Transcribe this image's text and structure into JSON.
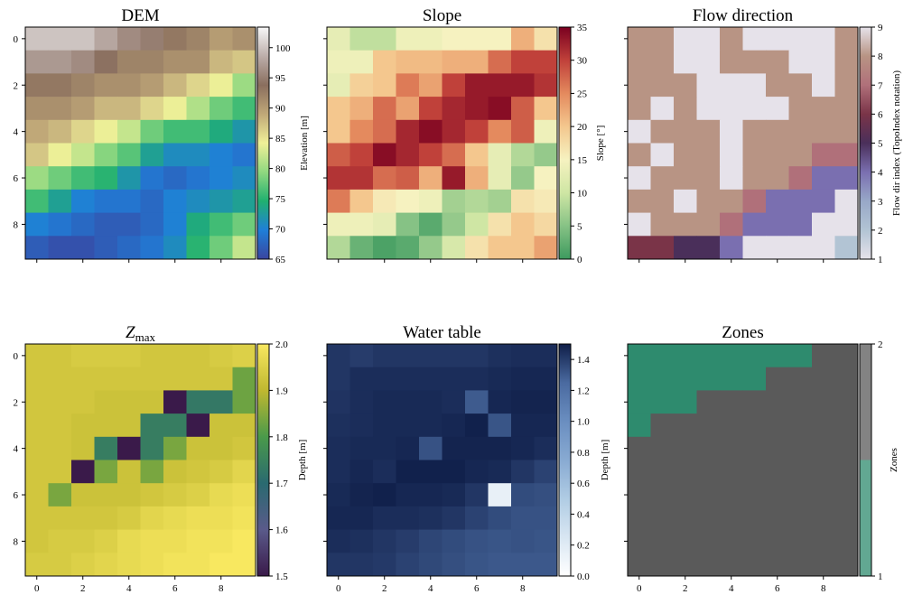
{
  "chart_data": [
    {
      "type": "heatmap",
      "title": "DEM",
      "colorbar_label": "Elevation [m]",
      "xlim": [
        -0.5,
        9.5
      ],
      "ylim": [
        9.5,
        -0.5
      ],
      "xticks": [
        0,
        2,
        4,
        6,
        8
      ],
      "yticks": [
        0,
        2,
        4,
        6,
        8
      ],
      "xticklabels": false,
      "yticklabels": true,
      "clim": [
        65,
        103.4
      ],
      "cticks": [
        65,
        70,
        75,
        80,
        85,
        90,
        95,
        100
      ],
      "discrete": false,
      "colormap": [
        "#3a45a0",
        "#1f7fd8",
        "#20b070",
        "#90d880",
        "#f0f098",
        "#c0a878",
        "#8a6e5e",
        "#bcaeaa",
        "#f8f8f8"
      ],
      "values": [
        [
          100,
          100,
          100,
          98,
          96,
          95,
          93,
          92,
          90,
          91
        ],
        [
          97,
          97,
          96,
          94,
          92,
          92,
          91,
          91,
          88,
          87
        ],
        [
          93,
          93,
          92,
          91,
          91,
          90,
          88,
          86,
          84,
          80
        ],
        [
          91,
          91,
          90,
          88,
          88,
          86,
          84,
          81,
          78,
          76
        ],
        [
          89,
          88,
          86,
          84,
          82,
          78,
          76,
          76,
          74,
          72
        ],
        [
          87,
          84,
          82,
          79,
          77,
          73,
          71,
          71,
          70,
          69
        ],
        [
          80,
          78,
          76,
          75,
          72,
          69,
          68,
          69,
          70,
          71
        ],
        [
          76,
          73,
          70,
          69,
          69,
          68,
          70,
          71,
          72,
          73
        ],
        [
          70,
          69,
          68,
          67,
          67,
          68,
          70,
          74,
          76,
          78
        ],
        [
          67,
          66,
          66,
          67,
          68,
          69,
          71,
          75,
          78,
          82
        ]
      ]
    },
    {
      "type": "heatmap",
      "title": "Slope",
      "colorbar_label": "Slope [°]",
      "xlim": [
        -0.5,
        9.5
      ],
      "ylim": [
        9.5,
        -0.5
      ],
      "xticks": [
        0,
        2,
        4,
        6,
        8
      ],
      "yticks": [
        0,
        2,
        4,
        6,
        8
      ],
      "xticklabels": false,
      "yticklabels": false,
      "clim": [
        0,
        35
      ],
      "cticks": [
        0,
        5,
        10,
        15,
        20,
        25,
        30,
        35
      ],
      "discrete": false,
      "colormap": [
        "#3d9a5e",
        "#86c285",
        "#cfe6a4",
        "#f6f2c0",
        "#f4c78e",
        "#e48a5e",
        "#c0413a",
        "#7a0020"
      ],
      "values": [
        [
          13,
          9,
          9,
          14,
          14,
          15,
          15,
          15,
          22,
          17
        ],
        [
          14,
          14,
          20,
          21,
          21,
          22,
          22,
          27,
          30,
          30
        ],
        [
          13,
          19,
          20,
          26,
          23,
          30,
          33,
          33,
          33,
          31
        ],
        [
          20,
          22,
          27,
          23,
          30,
          32,
          33,
          34,
          28,
          20
        ],
        [
          20,
          25,
          27,
          32,
          34,
          32,
          30,
          25,
          28,
          14
        ],
        [
          28,
          30,
          34,
          32,
          30,
          27,
          20,
          13,
          8,
          6
        ],
        [
          31,
          31,
          27,
          28,
          22,
          33,
          22,
          13,
          6,
          15
        ],
        [
          26,
          20,
          16,
          15,
          14,
          7,
          8,
          7,
          17,
          16
        ],
        [
          14,
          14,
          13,
          5,
          2,
          6,
          10,
          17,
          20,
          18
        ],
        [
          8,
          3,
          1,
          2,
          6,
          11,
          17,
          20,
          20,
          23
        ]
      ]
    },
    {
      "type": "heatmap",
      "title": "Flow direction",
      "colorbar_label": "Flow dir index (TopoIndex notation)",
      "xlim": [
        -0.5,
        9.5
      ],
      "ylim": [
        9.5,
        -0.5
      ],
      "xticks": [
        0,
        2,
        4,
        6,
        8
      ],
      "yticks": [
        0,
        2,
        4,
        6,
        8
      ],
      "xticklabels": false,
      "yticklabels": false,
      "clim": [
        1,
        9
      ],
      "cticks": [
        1,
        2,
        3,
        4,
        5,
        6,
        7,
        8,
        9
      ],
      "discrete": false,
      "colormap": [
        "#e6e2ea",
        "#b2c4d4",
        "#98a8c8",
        "#7a6fb0",
        "#4a2f5a",
        "#7a3448",
        "#b0707a",
        "#b89484",
        "#e6e2ea"
      ],
      "values": [
        [
          8,
          8,
          1,
          1,
          8,
          1,
          1,
          1,
          1,
          8
        ],
        [
          8,
          8,
          1,
          1,
          8,
          8,
          8,
          1,
          1,
          8
        ],
        [
          8,
          8,
          8,
          1,
          1,
          1,
          8,
          8,
          1,
          8
        ],
        [
          8,
          1,
          8,
          1,
          1,
          1,
          1,
          8,
          8,
          8
        ],
        [
          1,
          8,
          8,
          8,
          1,
          8,
          8,
          8,
          8,
          8
        ],
        [
          8,
          1,
          8,
          8,
          1,
          8,
          8,
          8,
          7,
          7
        ],
        [
          1,
          8,
          8,
          8,
          1,
          8,
          8,
          7,
          4,
          4
        ],
        [
          8,
          8,
          1,
          8,
          8,
          7,
          4,
          4,
          4,
          1
        ],
        [
          1,
          8,
          8,
          8,
          7,
          4,
          4,
          4,
          1,
          1
        ],
        [
          6,
          6,
          5,
          5,
          4,
          1,
          1,
          1,
          1,
          2
        ]
      ]
    },
    {
      "type": "heatmap",
      "title": "Z",
      "title_sub": "max",
      "colorbar_label": "Depth [m]",
      "xlim": [
        -0.5,
        9.5
      ],
      "ylim": [
        9.5,
        -0.5
      ],
      "xticks": [
        0,
        2,
        4,
        6,
        8
      ],
      "yticks": [
        0,
        2,
        4,
        6,
        8
      ],
      "xticklabels": true,
      "yticklabels": true,
      "clim": [
        1.5,
        2
      ],
      "cticks": [
        1.5,
        1.6,
        1.7,
        1.8,
        1.9,
        {
          "value": 2,
          "label": "2.0"
        }
      ],
      "discrete": false,
      "colormap": [
        "#3a1a4a",
        "#5a5a8a",
        "#2a6a70",
        "#4a9a4a",
        "#c0b830",
        "#f8e860"
      ],
      "values": [
        [
          1.93,
          1.93,
          1.94,
          1.94,
          1.94,
          1.93,
          1.93,
          1.93,
          1.94,
          1.95
        ],
        [
          1.93,
          1.93,
          1.93,
          1.93,
          1.93,
          1.93,
          1.93,
          1.93,
          1.93,
          1.83
        ],
        [
          1.93,
          1.93,
          1.93,
          1.92,
          1.92,
          1.92,
          1.5,
          1.73,
          1.73,
          1.83
        ],
        [
          1.93,
          1.93,
          1.92,
          1.92,
          1.92,
          1.74,
          1.74,
          1.5,
          1.92,
          1.92
        ],
        [
          1.93,
          1.93,
          1.92,
          1.74,
          1.5,
          1.74,
          1.84,
          1.92,
          1.92,
          1.93
        ],
        [
          1.93,
          1.93,
          1.5,
          1.84,
          1.92,
          1.84,
          1.92,
          1.93,
          1.94,
          1.96
        ],
        [
          1.93,
          1.84,
          1.92,
          1.92,
          1.92,
          1.93,
          1.94,
          1.95,
          1.97,
          1.98
        ],
        [
          1.93,
          1.93,
          1.93,
          1.93,
          1.94,
          1.96,
          1.97,
          1.98,
          1.98,
          1.99
        ],
        [
          1.93,
          1.94,
          1.94,
          1.95,
          1.97,
          1.98,
          1.98,
          1.99,
          1.99,
          2.0
        ],
        [
          1.94,
          1.94,
          1.95,
          1.96,
          1.97,
          1.98,
          1.99,
          1.99,
          2.0,
          2.0
        ]
      ]
    },
    {
      "type": "heatmap",
      "title": "Water table",
      "colorbar_label": "Depth [m]",
      "xlim": [
        -0.5,
        9.5
      ],
      "ylim": [
        9.5,
        -0.5
      ],
      "xticks": [
        0,
        2,
        4,
        6,
        8
      ],
      "yticks": [
        0,
        2,
        4,
        6,
        8
      ],
      "xticklabels": true,
      "yticklabels": false,
      "clim": [
        0,
        1.5
      ],
      "cticks": [
        {
          "value": 0,
          "label": "0.0"
        },
        0.2,
        0.4,
        0.6,
        0.8,
        {
          "value": 1,
          "label": "1.0"
        },
        1.2,
        1.4
      ],
      "discrete": false,
      "colormap": [
        "#ffffff",
        "#d8e6f2",
        "#b0cce4",
        "#88aad2",
        "#6a8ec0",
        "#4a6aa0",
        "#0f1e48"
      ],
      "values": [
        [
          1.42,
          1.4,
          1.42,
          1.42,
          1.42,
          1.42,
          1.42,
          1.44,
          1.45,
          1.45
        ],
        [
          1.42,
          1.45,
          1.45,
          1.45,
          1.45,
          1.45,
          1.45,
          1.46,
          1.47,
          1.47
        ],
        [
          1.43,
          1.45,
          1.46,
          1.46,
          1.46,
          1.45,
          1.3,
          1.47,
          1.48,
          1.48
        ],
        [
          1.44,
          1.45,
          1.46,
          1.46,
          1.46,
          1.47,
          1.49,
          1.32,
          1.47,
          1.47
        ],
        [
          1.45,
          1.46,
          1.46,
          1.47,
          1.33,
          1.48,
          1.48,
          1.48,
          1.47,
          1.45
        ],
        [
          1.45,
          1.47,
          1.45,
          1.49,
          1.49,
          1.49,
          1.47,
          1.46,
          1.42,
          1.38
        ],
        [
          1.46,
          1.48,
          1.49,
          1.47,
          1.47,
          1.46,
          1.42,
          0.15,
          1.35,
          1.34
        ],
        [
          1.47,
          1.47,
          1.45,
          1.45,
          1.44,
          1.42,
          1.38,
          1.35,
          1.33,
          1.33
        ],
        [
          1.45,
          1.44,
          1.42,
          1.4,
          1.37,
          1.35,
          1.33,
          1.32,
          1.33,
          1.32
        ],
        [
          1.42,
          1.42,
          1.41,
          1.38,
          1.36,
          1.34,
          1.32,
          1.31,
          1.31,
          1.31
        ]
      ]
    },
    {
      "type": "heatmap",
      "title": "Zones",
      "colorbar_label": "Zones",
      "xlim": [
        -0.5,
        9.5
      ],
      "ylim": [
        9.5,
        -0.5
      ],
      "xticks": [
        0,
        2,
        4,
        6,
        8
      ],
      "yticks": [
        0,
        2,
        4,
        6,
        8
      ],
      "xticklabels": true,
      "yticklabels": false,
      "clim": [
        1,
        2
      ],
      "cticks": [
        1,
        2
      ],
      "discrete": true,
      "colormap": [
        "#2e8b6e",
        "#5a5a5a"
      ],
      "values": [
        [
          1,
          1,
          1,
          1,
          1,
          1,
          1,
          1,
          2,
          2
        ],
        [
          1,
          1,
          1,
          1,
          1,
          1,
          2,
          2,
          2,
          2
        ],
        [
          1,
          1,
          1,
          2,
          2,
          2,
          2,
          2,
          2,
          2
        ],
        [
          1,
          2,
          2,
          2,
          2,
          2,
          2,
          2,
          2,
          2
        ],
        [
          2,
          2,
          2,
          2,
          2,
          2,
          2,
          2,
          2,
          2
        ],
        [
          2,
          2,
          2,
          2,
          2,
          2,
          2,
          2,
          2,
          2
        ],
        [
          2,
          2,
          2,
          2,
          2,
          2,
          2,
          2,
          2,
          2
        ],
        [
          2,
          2,
          2,
          2,
          2,
          2,
          2,
          2,
          2,
          2
        ],
        [
          2,
          2,
          2,
          2,
          2,
          2,
          2,
          2,
          2,
          2
        ],
        [
          2,
          2,
          2,
          2,
          2,
          2,
          2,
          2,
          2,
          2
        ]
      ]
    }
  ]
}
